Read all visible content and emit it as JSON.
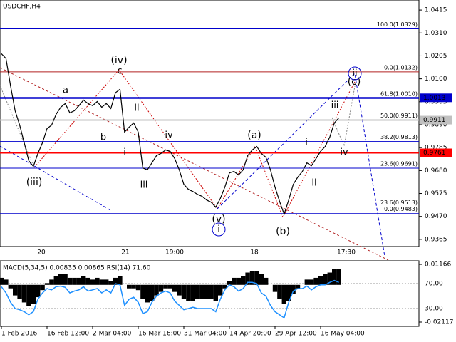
{
  "chart_data": [
    {
      "type": "line",
      "title": "USDCHF,H4",
      "categories": [
        "1 Feb 2016",
        null,
        null,
        null,
        null,
        null,
        null,
        null,
        null,
        null,
        "16 Feb 12:00",
        null,
        null,
        null,
        null,
        null,
        null,
        null,
        null,
        null,
        "2 Mar 04:00",
        null,
        null,
        null,
        null,
        null,
        null,
        null,
        null,
        null,
        "16 Mar 16:00",
        null,
        null,
        null,
        null,
        null,
        null,
        null,
        null,
        null,
        "31 Mar 04:00",
        null,
        null,
        null,
        null,
        null,
        null,
        null,
        null,
        null,
        "14 Apr 20:00",
        null,
        null,
        null,
        null,
        null,
        null,
        null,
        null,
        null,
        "29 Apr 12:00",
        null,
        null,
        null,
        null,
        null,
        null,
        null,
        null,
        null,
        "16 May 04:00",
        null,
        null,
        null,
        null
      ],
      "values": [
        1.0215,
        1.0193,
        1.0068,
        0.9954,
        0.9888,
        0.9807,
        0.9725,
        0.9699,
        0.9758,
        0.9807,
        0.9872,
        0.9888,
        0.9938,
        0.997,
        0.9987,
        0.9944,
        0.9954,
        0.9977,
        1.0003,
        0.9987,
        0.9977,
        0.9996,
        0.997,
        0.9987,
        0.9964,
        1.0036,
        1.0052,
        0.9856,
        0.9879,
        0.9898,
        0.9856,
        0.9692,
        0.9683,
        0.9715,
        0.9748,
        0.9758,
        0.9774,
        0.9768,
        0.9735,
        0.9683,
        0.9617,
        0.9594,
        0.9584,
        0.9571,
        0.9562,
        0.9545,
        0.9535,
        0.9512,
        0.9552,
        0.9604,
        0.9669,
        0.9676,
        0.966,
        0.9683,
        0.9748,
        0.9774,
        0.979,
        0.9758,
        0.9741,
        0.9683,
        0.9604,
        0.9539,
        0.948,
        0.9545,
        0.9617,
        0.965,
        0.9676,
        0.9715,
        0.9702,
        0.9735,
        0.9768,
        0.979,
        0.9833,
        0.9898,
        0.9921
      ],
      "color": "#000000",
      "ylim": [
        0.9332,
        1.0461
      ],
      "yticks": [
        1.0415,
        {
          "value": 1.031,
          "label": "1.0310"
        },
        1.0205,
        {
          "value": 1.01,
          "label": "1.0100"
        },
        0.9995,
        {
          "value": 0.989,
          "label": "0.9890"
        },
        0.9785,
        {
          "value": 0.968,
          "label": "0.9680"
        },
        0.9575,
        {
          "value": 0.947,
          "label": "0.9470"
        },
        0.9365
      ],
      "levels": [
        {
          "label": "100.0(1.0329)",
          "value": 1.0329,
          "color": "#0000cc"
        },
        {
          "label": "0.0(1.0132)",
          "value": 1.0132,
          "color": "#b22222"
        },
        {
          "label": "61.8(1.0010)",
          "value": 1.001,
          "color": "#0000cc"
        },
        {
          "label": "50.0(0.9911)",
          "value": 0.9911,
          "color": "#0000cc"
        },
        {
          "label": "38.2(0.9813)",
          "value": 0.9813,
          "color": "#0000cc"
        },
        {
          "label": "23.6(0.9691)",
          "value": 0.9691,
          "color": "#0000cc"
        },
        {
          "label": "23.6(0.9513)",
          "value": 0.9513,
          "color": "#b22222"
        },
        {
          "label": "0.0(0.9483)",
          "value": 0.9483,
          "color": "#0000cc"
        }
      ],
      "price_tags": [
        {
          "value": 1.0013,
          "color": "#0000cc"
        },
        {
          "value": 0.9911,
          "color": "#c0c0c0"
        },
        {
          "value": 0.9761,
          "color": "#ff0000"
        }
      ],
      "annotations": [
        {
          "text": "(iv)",
          "color": "#cc0000"
        },
        {
          "text": "c",
          "color": "#808080"
        },
        {
          "text": "a",
          "color": "#808080"
        },
        {
          "text": "b",
          "color": "#808080"
        },
        {
          "text": "ii",
          "color": "#808080"
        },
        {
          "text": "i",
          "color": "#808080"
        },
        {
          "text": "iii",
          "color": "#808080"
        },
        {
          "text": "iv",
          "color": "#808080"
        },
        {
          "text": "(iii)",
          "color": "#cc0000"
        },
        {
          "text": "(v)",
          "color": "#cc0000"
        },
        {
          "text": "i",
          "color": "#0000cc"
        },
        {
          "text": "(a)",
          "color": "#cc0000"
        },
        {
          "text": "(b)",
          "color": "#cc0000"
        },
        {
          "text": "i",
          "color": "#808080"
        },
        {
          "text": "ii",
          "color": "#808080"
        },
        {
          "text": "iii",
          "color": "#808080"
        },
        {
          "text": "iv",
          "color": "#808080"
        },
        {
          "text": "(c)",
          "color": "#cc0000"
        },
        {
          "text": "ii",
          "color": "#0000cc"
        }
      ],
      "period_markers": [
        "20",
        "21",
        "19:00",
        "18",
        "17:30"
      ]
    },
    {
      "type": "bar",
      "title": "MACD(5,34,5) 0.00835 0.00865 RSI(14) 71.60",
      "values": [
        0.004,
        0.003,
        -0.002,
        -0.006,
        -0.008,
        -0.01,
        -0.012,
        -0.011,
        -0.007,
        -0.003,
        0.001,
        0.003,
        0.005,
        0.006,
        0.006,
        0.004,
        0.004,
        0.004,
        0.005,
        0.004,
        0.003,
        0.004,
        0.003,
        0.003,
        0.002,
        0.004,
        0.005,
        0.0,
        -0.002,
        -0.002,
        -0.003,
        -0.008,
        -0.01,
        -0.009,
        -0.006,
        -0.004,
        -0.002,
        -0.002,
        -0.004,
        -0.006,
        -0.008,
        -0.009,
        -0.009,
        -0.008,
        -0.008,
        -0.008,
        -0.008,
        -0.009,
        -0.006,
        -0.002,
        0.002,
        0.004,
        0.004,
        0.005,
        0.007,
        0.008,
        0.008,
        0.006,
        0.004,
        0.0,
        -0.004,
        -0.008,
        -0.011,
        -0.009,
        -0.005,
        -0.002,
        0.0,
        0.003,
        0.003,
        0.004,
        0.005,
        0.006,
        0.007,
        0.009,
        0.009
      ],
      "color": "#000000",
      "ylim": [
        -0.0236,
        0.0137
      ],
      "yticks": [
        0.01166,
        -0.02117
      ],
      "line": {
        "axis": "y2",
        "color": "#1e90ff",
        "values": [
          65,
          55,
          40,
          30,
          28,
          25,
          20,
          25,
          45,
          55,
          62,
          60,
          65,
          66,
          64,
          55,
          58,
          60,
          65,
          58,
          60,
          62,
          55,
          60,
          55,
          70,
          68,
          35,
          45,
          48,
          40,
          22,
          25,
          40,
          50,
          55,
          58,
          55,
          42,
          35,
          28,
          30,
          32,
          30,
          30,
          30,
          30,
          25,
          45,
          60,
          68,
          65,
          58,
          62,
          72,
          72,
          70,
          55,
          50,
          35,
          25,
          20,
          15,
          40,
          58,
          62,
          62,
          66,
          60,
          65,
          68,
          68,
          72,
          75,
          72
        ]
      },
      "y2lim": [
        1.4,
        106.6
      ],
      "y2ticks": [
        {
          "value": 70,
          "label": "70.00"
        },
        {
          "value": 30,
          "label": "30.00"
        }
      ]
    }
  ]
}
